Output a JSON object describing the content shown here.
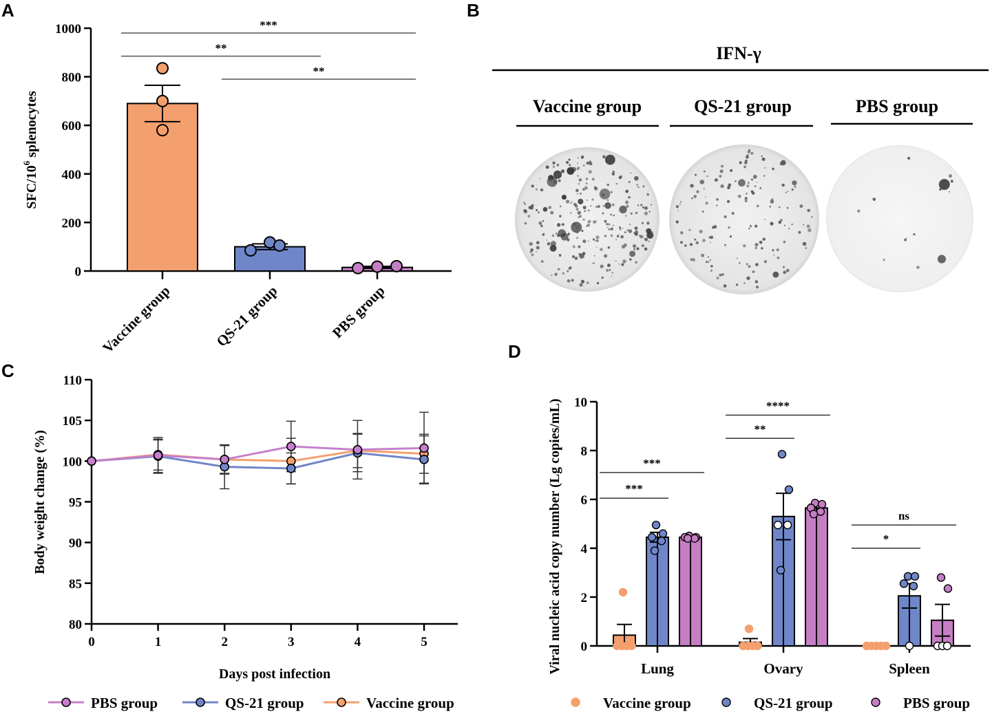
{
  "colors": {
    "vaccine": "#F4A06E",
    "qs21": "#6F86C8",
    "pbs": "#C57EC4",
    "pbs_line": "#C67FCC",
    "axis": "#000000"
  },
  "panels": {
    "a": "A",
    "b": "B",
    "c": "C",
    "d": "D"
  },
  "panel_b": {
    "title": "IFN-γ",
    "groups": [
      "Vaccine group",
      "QS-21 group",
      "PBS group"
    ]
  },
  "chart_data": [
    {
      "id": "A",
      "type": "bar",
      "ylabel_main": "SFC/10",
      "ylabel_sup": "6",
      "ylabel_tail": " splenocytes",
      "ylim": [
        0,
        1000
      ],
      "yticks": [
        0,
        200,
        400,
        600,
        800,
        1000
      ],
      "categories": [
        "Vaccine group",
        "QS-21 group",
        "PBS group"
      ],
      "values": [
        690,
        100,
        15
      ],
      "errors": [
        75,
        12,
        4
      ],
      "points": [
        [
          835,
          700,
          580
        ],
        [
          85,
          118,
          105
        ],
        [
          12,
          18,
          20
        ]
      ],
      "significance": [
        {
          "from": 0,
          "to": 2,
          "label": "***",
          "y": 980
        },
        {
          "from": 0,
          "to": 1,
          "label": "**",
          "y": 885
        },
        {
          "from": 1,
          "to": 2,
          "label": "**",
          "y": 790
        }
      ]
    },
    {
      "id": "C",
      "type": "line",
      "xlabel": "Days post infection",
      "ylabel": "Body weight change (%)",
      "ylim": [
        80,
        110
      ],
      "yticks": [
        80,
        85,
        90,
        95,
        100,
        105,
        110
      ],
      "x": [
        0,
        1,
        2,
        3,
        4,
        5
      ],
      "series": [
        {
          "name": "PBS group",
          "values": [
            100,
            100.7,
            100.2,
            101.8,
            101.4,
            101.6
          ],
          "errors": [
            0,
            2.2,
            1.8,
            3.1,
            3.6,
            4.4
          ]
        },
        {
          "name": "QS-21 group",
          "values": [
            100,
            100.6,
            99.3,
            99.1,
            101.0,
            100.2
          ],
          "errors": [
            0,
            2.0,
            2.7,
            1.9,
            2.3,
            2.9
          ]
        },
        {
          "name": "Vaccine group",
          "values": [
            100,
            100.8,
            100.2,
            100.0,
            101.3,
            100.9
          ],
          "errors": [
            0,
            1.9,
            1.7,
            2.8,
            2.1,
            2.4
          ]
        }
      ],
      "legend": [
        "PBS group",
        "QS-21 group",
        "Vaccine group"
      ]
    },
    {
      "id": "D",
      "type": "bar",
      "ylabel": "Viral nucleic acid copy number (Lg copies/mL)",
      "ylim": [
        0,
        10
      ],
      "yticks": [
        0,
        2,
        4,
        6,
        8,
        10
      ],
      "categories": [
        "Lung",
        "Ovary",
        "Spleen"
      ],
      "series": [
        {
          "name": "Vaccine group",
          "values": [
            0.44,
            0.15,
            0.0
          ],
          "errors": [
            0.44,
            0.15,
            0.0
          ],
          "points": [
            [
              2.2,
              0.0,
              0.0,
              0.0,
              0.0
            ],
            [
              0.7,
              0.0,
              0.0,
              0.0,
              0.0
            ],
            [
              0.0,
              0.0,
              0.0,
              0.0,
              0.0
            ]
          ]
        },
        {
          "name": "QS-21 group",
          "values": [
            4.45,
            5.3,
            2.05
          ],
          "errors": [
            0.2,
            0.95,
            0.5
          ],
          "points": [
            [
              4.95,
              4.6,
              4.45,
              4.3,
              3.9
            ],
            [
              7.85,
              6.4,
              4.95,
              4.95,
              3.1
            ],
            [
              2.85,
              2.85,
              2.55,
              2.45,
              0.0
            ]
          ]
        },
        {
          "name": "PBS group",
          "values": [
            4.45,
            5.65,
            1.05
          ],
          "errors": [
            0.05,
            0.15,
            0.65
          ],
          "points": [
            [
              4.5,
              4.45,
              4.45,
              4.4,
              4.4
            ],
            [
              5.85,
              5.8,
              5.65,
              5.5,
              5.4
            ],
            [
              2.8,
              2.35,
              0.0,
              0.0,
              0.0
            ]
          ]
        }
      ],
      "significance": [
        {
          "group": 0,
          "from": 0,
          "to": 2,
          "label": "***",
          "y": 7.1
        },
        {
          "group": 0,
          "from": 0,
          "to": 1,
          "label": "***",
          "y": 6.05
        },
        {
          "group": 1,
          "from": 0,
          "to": 2,
          "label": "****",
          "y": 9.45
        },
        {
          "group": 1,
          "from": 0,
          "to": 1,
          "label": "**",
          "y": 8.5
        },
        {
          "group": 2,
          "from": 0,
          "to": 2,
          "label": "ns",
          "y": 4.95
        },
        {
          "group": 2,
          "from": 0,
          "to": 1,
          "label": "*",
          "y": 4.0
        }
      ],
      "legend": [
        "Vaccine group",
        "QS-21 group",
        "PBS group"
      ]
    }
  ]
}
